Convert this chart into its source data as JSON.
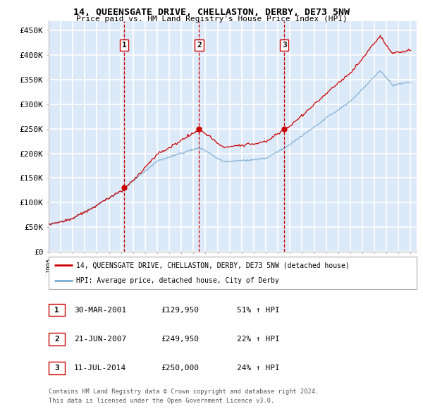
{
  "title": "14, QUEENSGATE DRIVE, CHELLASTON, DERBY, DE73 5NW",
  "subtitle": "Price paid vs. HM Land Registry's House Price Index (HPI)",
  "ytick_values": [
    0,
    50000,
    100000,
    150000,
    200000,
    250000,
    300000,
    350000,
    400000,
    450000
  ],
  "ylim": [
    0,
    470000
  ],
  "sale_dates": [
    2001.25,
    2007.47,
    2014.53
  ],
  "sale_labels": [
    "1",
    "2",
    "3"
  ],
  "sale_prices": [
    129950,
    249950,
    250000
  ],
  "legend_line1": "14, QUEENSGATE DRIVE, CHELLASTON, DERBY, DE73 5NW (detached house)",
  "legend_line2": "HPI: Average price, detached house, City of Derby",
  "table_rows": [
    [
      "1",
      "30-MAR-2001",
      "£129,950",
      "51% ↑ HPI"
    ],
    [
      "2",
      "21-JUN-2007",
      "£249,950",
      "22% ↑ HPI"
    ],
    [
      "3",
      "11-JUL-2014",
      "£250,000",
      "24% ↑ HPI"
    ]
  ],
  "footnote1": "Contains HM Land Registry data © Crown copyright and database right 2024.",
  "footnote2": "This data is licensed under the Open Government Licence v3.0.",
  "background_color": "#dce9f8",
  "grid_color": "#ffffff",
  "red_line_color": "#cc0000",
  "blue_line_color": "#7aadd4"
}
